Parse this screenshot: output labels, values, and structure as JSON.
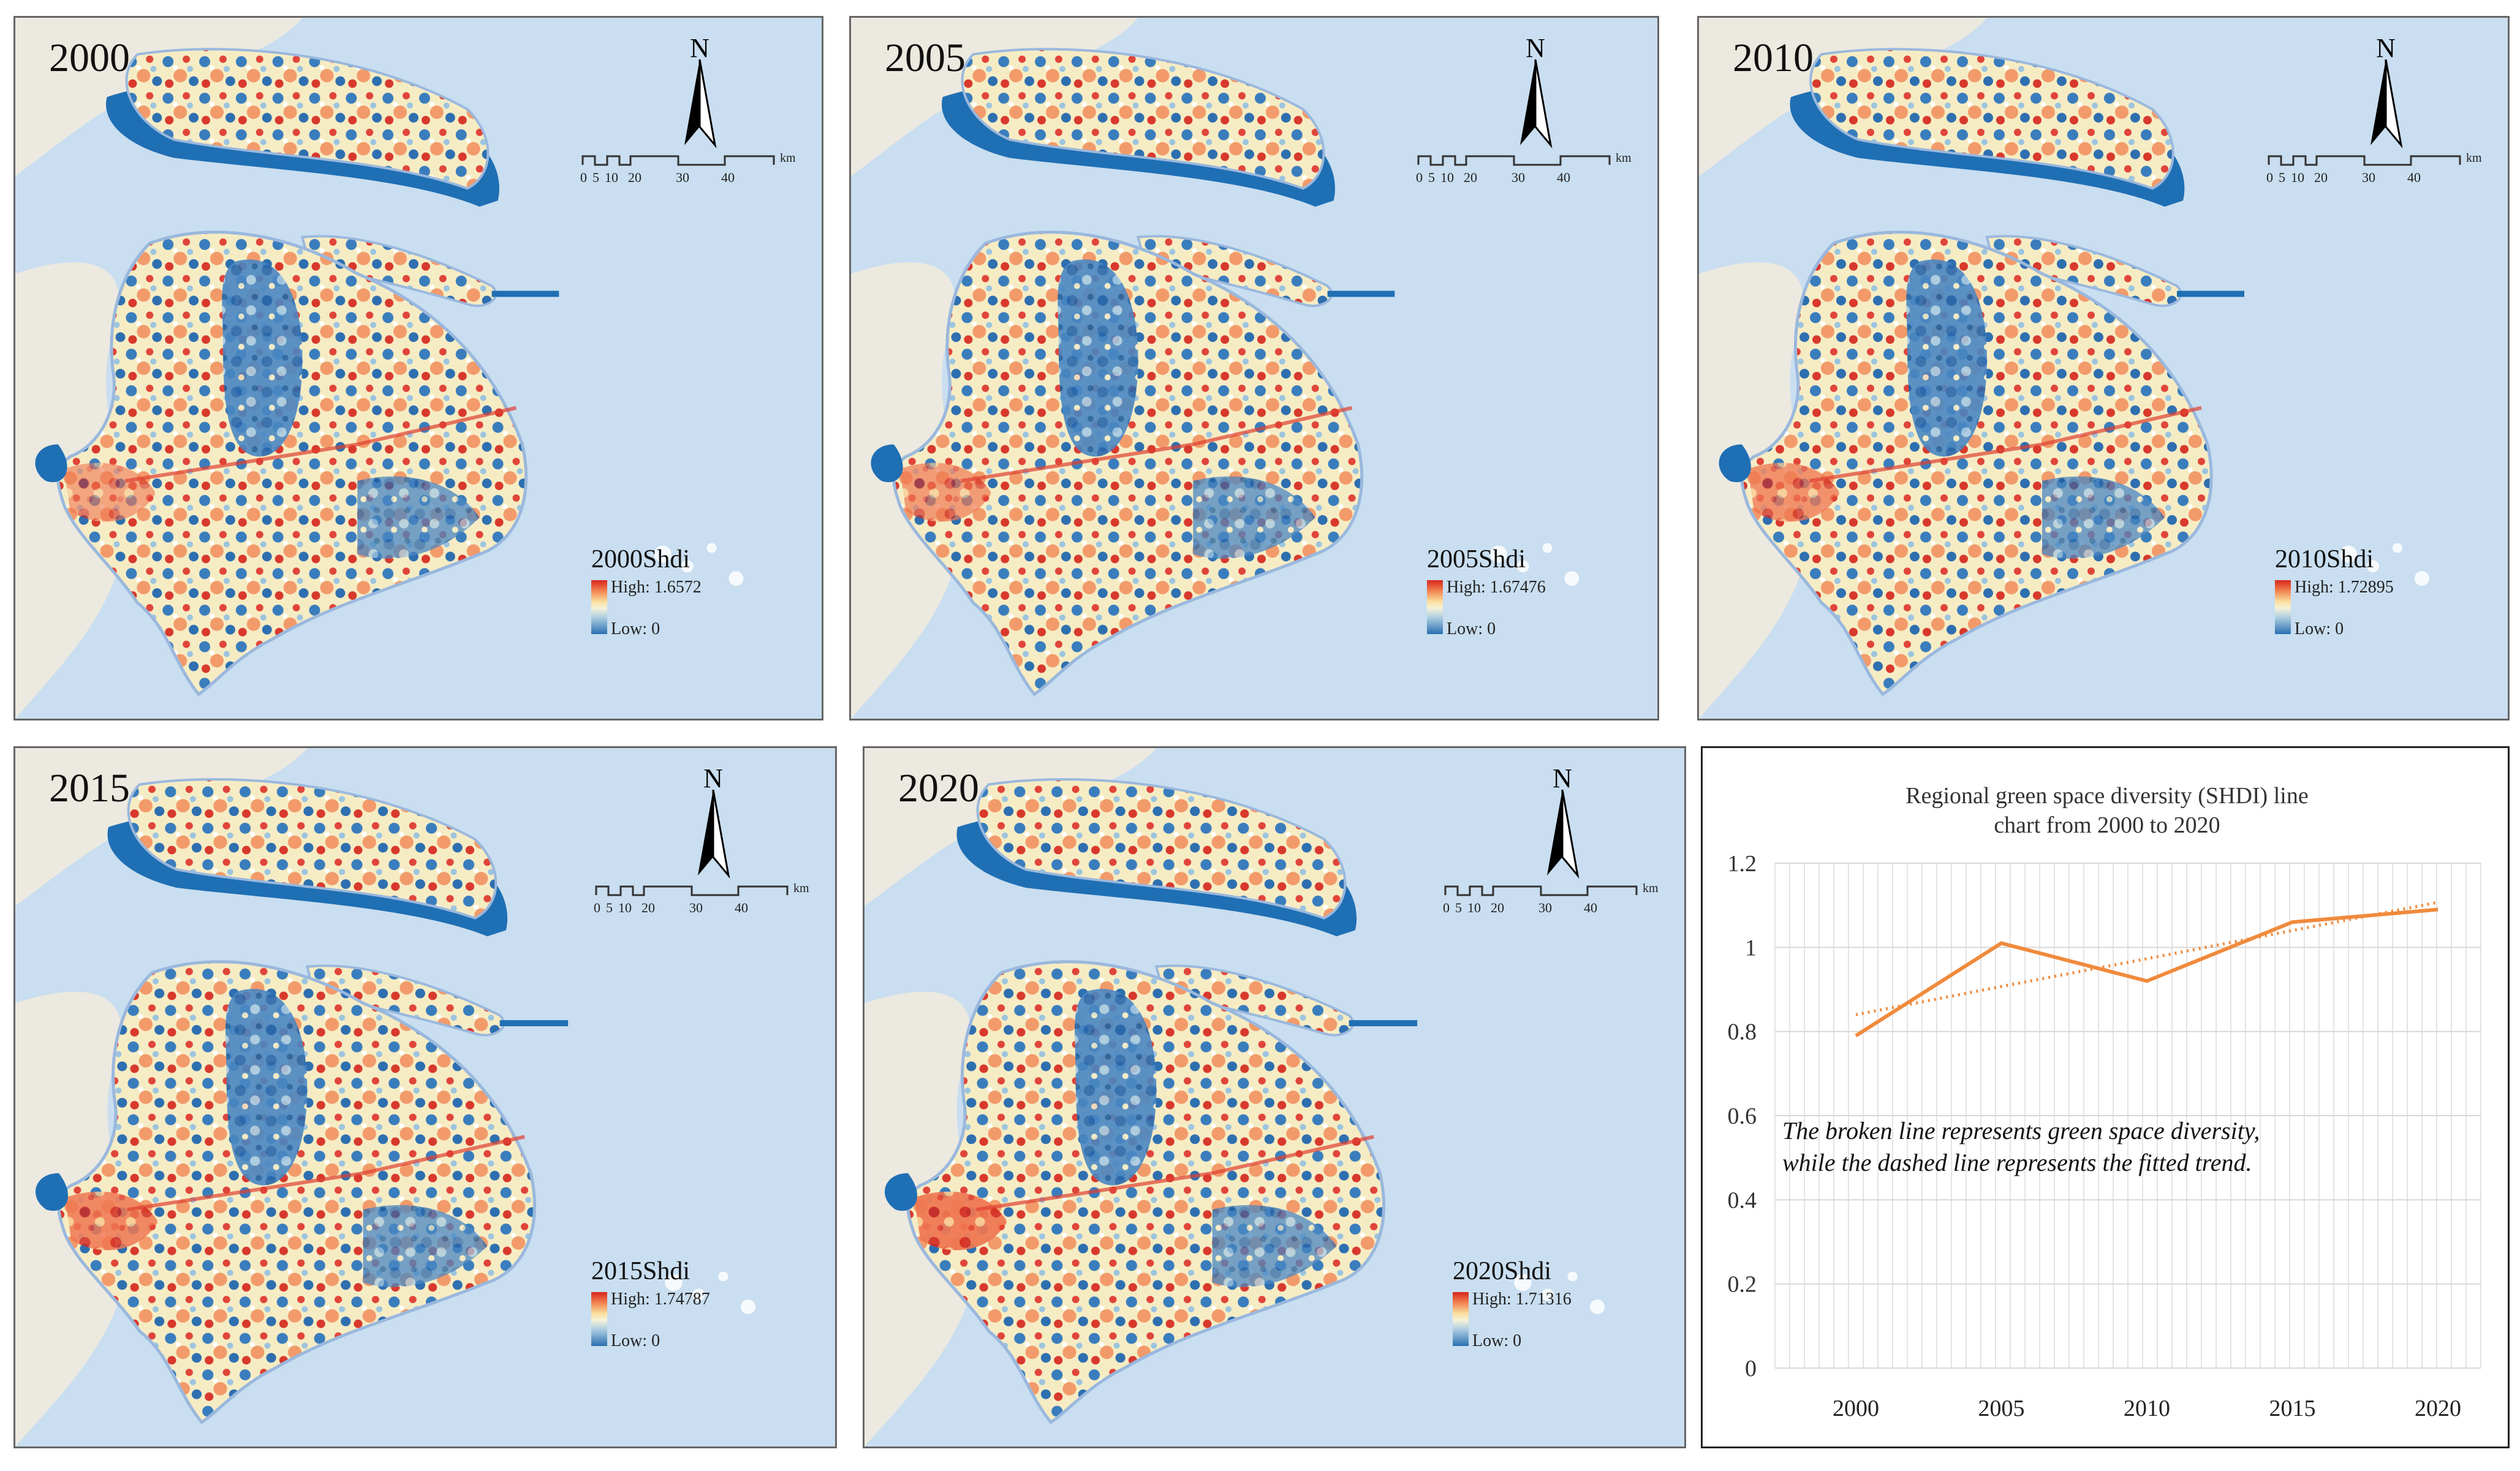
{
  "panels": [
    {
      "year": "2000",
      "legend_title": "2000Shdi",
      "high_label": "High: 1.6572",
      "low_label": "Low: 0"
    },
    {
      "year": "2005",
      "legend_title": "2005Shdi",
      "high_label": "High: 1.67476",
      "low_label": "Low: 0"
    },
    {
      "year": "2010",
      "legend_title": "2010Shdi",
      "high_label": "High: 1.72895",
      "low_label": "Low: 0"
    },
    {
      "year": "2015",
      "legend_title": "2015Shdi",
      "high_label": "High: 1.74787",
      "low_label": "Low: 0"
    },
    {
      "year": "2020",
      "legend_title": "2020Shdi",
      "high_label": "High: 1.71316",
      "low_label": "Low: 0"
    }
  ],
  "north_label": "N",
  "scale_bar": {
    "ticks": [
      "0",
      "5",
      "10",
      "20",
      "30",
      "40"
    ],
    "unit": "km"
  },
  "colors": {
    "sea": "#c9def0",
    "land": "#f3f1ea",
    "water_body": "#1f6fb4",
    "high": "#d7261e",
    "mid": "#f6f2d8",
    "low": "#2a6fb0",
    "trend_line": "#f08a3c"
  },
  "chart_data": {
    "type": "line",
    "title_line1": "Regional green space diversity (SHDI) line",
    "title_line2": "chart from 2000 to 2020",
    "categories": [
      "2000",
      "2005",
      "2010",
      "2015",
      "2020"
    ],
    "series": [
      {
        "name": "SHDI",
        "style": "solid",
        "values": [
          0.79,
          1.01,
          0.92,
          1.06,
          1.09
        ]
      },
      {
        "name": "Linear trend",
        "style": "dotted",
        "values": [
          0.84,
          0.907,
          0.973,
          1.04,
          1.107
        ]
      }
    ],
    "yticks": [
      "0",
      "0.2",
      "0.4",
      "0.6",
      "0.8",
      "1",
      "1.2"
    ],
    "ylim": [
      0,
      1.2
    ],
    "annotation_line1": "The broken line represents green space diversity,",
    "annotation_line2": "while the dashed line represents the fitted trend."
  }
}
